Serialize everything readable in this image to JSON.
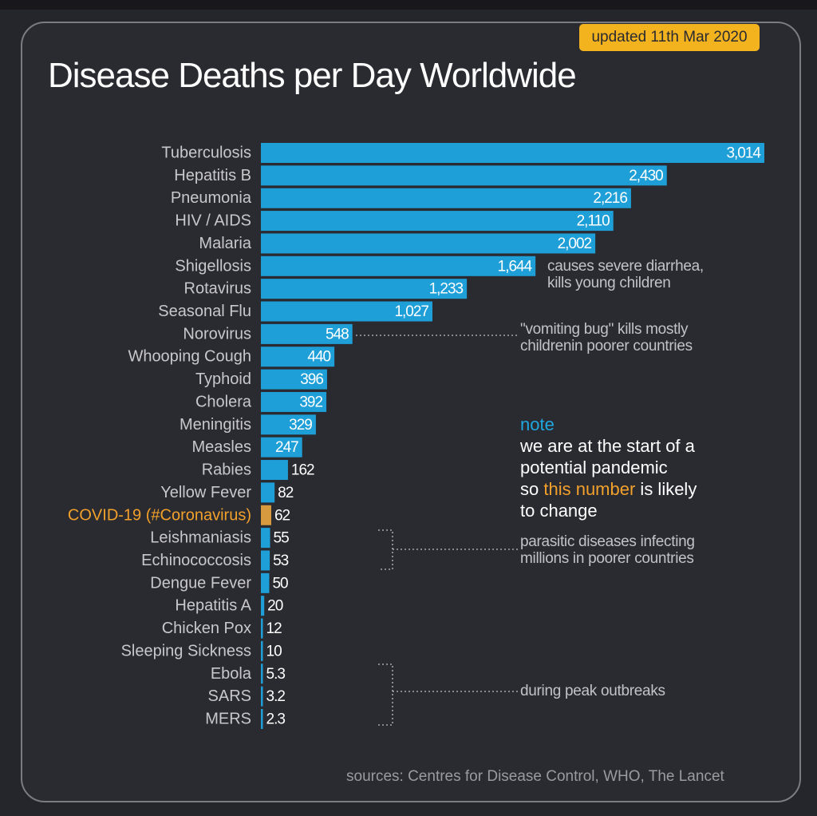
{
  "header": {
    "updated": "updated 11th Mar 2020",
    "title": "Disease Deaths per Day Worldwide"
  },
  "colors": {
    "bar": "#1f9fd8",
    "highlight": "#d89a3e",
    "highlight_text": "#f2a12b",
    "label": "#c8c8cc",
    "background": "#2a2a31"
  },
  "chart_data": {
    "type": "bar",
    "orientation": "horizontal",
    "title": "Disease Deaths per Day Worldwide",
    "categories": [
      "Tuberculosis",
      "Hepatitis B",
      "Pneumonia",
      "HIV / AIDS",
      "Malaria",
      "Shigellosis",
      "Rotavirus",
      "Seasonal Flu",
      "Norovirus",
      "Whooping Cough",
      "Typhoid",
      "Cholera",
      "Meningitis",
      "Measles",
      "Rabies",
      "Yellow Fever",
      "COVID-19 (#Coronavirus)",
      "Leishmaniasis",
      "Echinococcosis",
      "Dengue Fever",
      "Hepatitis A",
      "Chicken Pox",
      "Sleeping Sickness",
      "Ebola",
      "SARS",
      "MERS"
    ],
    "values": [
      3014,
      2430,
      2216,
      2110,
      2002,
      1644,
      1233,
      1027,
      548,
      440,
      396,
      392,
      329,
      247,
      162,
      82,
      62,
      55,
      53,
      50,
      20,
      12,
      10,
      5.3,
      3.2,
      2.3
    ],
    "value_labels": [
      "3,014",
      "2,430",
      "2,216",
      "2,110",
      "2,002",
      "1,644",
      "1,233",
      "1,027",
      "548",
      "440",
      "396",
      "392",
      "329",
      "247",
      "162",
      "82",
      "62",
      "55",
      "53",
      "50",
      "20",
      "12",
      "10",
      "5.3",
      "3.2",
      "2.3"
    ],
    "highlight": "COVID-19 (#Coronavirus)",
    "xlim": [
      0,
      3014
    ]
  },
  "annotations": {
    "shigellosis": [
      "causes severe diarrhea,",
      "kills young children"
    ],
    "norovirus": [
      "\"vomiting bug\" kills mostly",
      "childrenin poorer countries"
    ],
    "parasitic": [
      "parasitic diseases infecting",
      "millions in poorer countries"
    ],
    "outbreaks": "during peak outbreaks"
  },
  "note": {
    "heading": "note",
    "line1": "we are at the start of a",
    "line2": "potential pandemic",
    "line3_pre": "so ",
    "line3_highlight": "this number",
    "line3_post": " is likely",
    "line4": "to change"
  },
  "footer": {
    "sources": "sources: Centres for Disease Control, WHO, The Lancet"
  }
}
